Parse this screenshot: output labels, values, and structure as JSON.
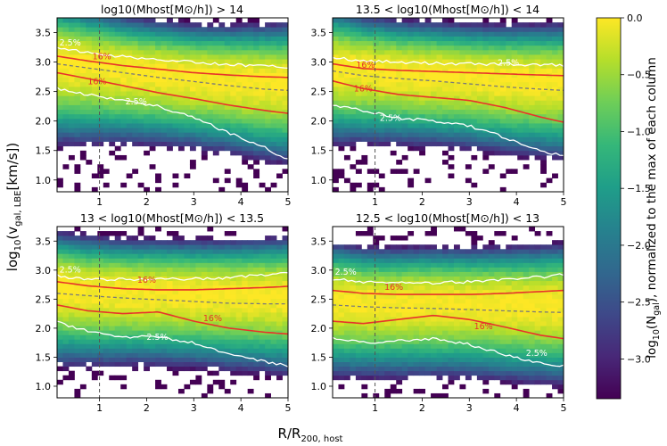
{
  "figure": {
    "xlabel": "R/R",
    "xlabel_sub": "200, host",
    "ylabel": "log",
    "ylabel_sub": "10",
    "ylabel_tail": "(v",
    "ylabel_sub2": "gal, LBE",
    "ylabel_end": "[km/s])"
  },
  "chart_data": [
    {
      "type": "heatmap",
      "title": "log10(Mhost[M⊙/h]) > 14",
      "x": [
        0.1,
        0.75,
        1.5,
        2.25,
        3.0,
        3.75,
        4.5,
        5.0
      ],
      "ridge": [
        3.02,
        2.95,
        2.88,
        2.82,
        2.76,
        2.72,
        2.68,
        2.67
      ],
      "width": [
        0.38,
        0.36,
        0.34,
        0.33,
        0.33,
        0.34,
        0.36,
        0.37
      ],
      "contours": [
        {
          "name": "2.5% upper",
          "color": "#ffffff",
          "dash": "",
          "values": [
            3.23,
            3.16,
            3.09,
            3.04,
            3.0,
            2.96,
            2.93,
            2.92
          ]
        },
        {
          "name": "16% upper",
          "color": "#e8322b",
          "dash": "",
          "values": [
            3.1,
            3.02,
            2.94,
            2.88,
            2.82,
            2.78,
            2.75,
            2.74
          ]
        },
        {
          "name": "median",
          "color": "#7a7a7a",
          "dash": "4,3",
          "values": [
            2.97,
            2.9,
            2.82,
            2.74,
            2.67,
            2.6,
            2.54,
            2.52
          ]
        },
        {
          "name": "16% lower",
          "color": "#e8322b",
          "dash": "",
          "values": [
            2.82,
            2.72,
            2.6,
            2.48,
            2.38,
            2.27,
            2.18,
            2.13
          ]
        },
        {
          "name": "2.5% lower",
          "color": "#ffffff",
          "dash": "",
          "values": [
            2.55,
            2.45,
            2.35,
            2.25,
            2.05,
            1.8,
            1.55,
            1.35
          ]
        }
      ],
      "labels": [
        {
          "text": "2.5%",
          "x": 0.15,
          "y": 3.28,
          "color": "#ffffff"
        },
        {
          "text": "16%",
          "x": 0.85,
          "y": 3.05,
          "color": "#e8322b"
        },
        {
          "text": "16%",
          "x": 0.75,
          "y": 2.62,
          "color": "#e8322b"
        },
        {
          "text": "2.5%",
          "x": 1.55,
          "y": 2.28,
          "color": "#ffffff"
        }
      ]
    },
    {
      "type": "heatmap",
      "title": "13.5 < log10(Mhost[M⊙/h]) < 14",
      "x": [
        0.1,
        0.75,
        1.5,
        2.25,
        3.0,
        3.75,
        4.5,
        5.0
      ],
      "ridge": [
        2.95,
        2.88,
        2.83,
        2.8,
        2.76,
        2.72,
        2.7,
        2.69
      ],
      "width": [
        0.36,
        0.34,
        0.33,
        0.33,
        0.33,
        0.34,
        0.35,
        0.36
      ],
      "contours": [
        {
          "name": "2.5% upper",
          "color": "#ffffff",
          "dash": "",
          "values": [
            3.08,
            3.02,
            3.0,
            2.98,
            2.97,
            2.96,
            2.95,
            2.95
          ]
        },
        {
          "name": "16% upper",
          "color": "#e8322b",
          "dash": "",
          "values": [
            2.97,
            2.89,
            2.86,
            2.84,
            2.82,
            2.8,
            2.78,
            2.77
          ]
        },
        {
          "name": "median",
          "color": "#7a7a7a",
          "dash": "4,3",
          "values": [
            2.85,
            2.77,
            2.72,
            2.68,
            2.63,
            2.58,
            2.54,
            2.52
          ]
        },
        {
          "name": "16% lower",
          "color": "#e8322b",
          "dash": "",
          "values": [
            2.68,
            2.55,
            2.45,
            2.4,
            2.35,
            2.23,
            2.07,
            1.98
          ]
        },
        {
          "name": "2.5% lower",
          "color": "#ffffff",
          "dash": "",
          "values": [
            2.28,
            2.18,
            2.05,
            2.0,
            1.92,
            1.72,
            1.5,
            1.4
          ]
        }
      ],
      "labels": [
        {
          "text": "16%",
          "x": 0.6,
          "y": 2.9,
          "color": "#e8322b"
        },
        {
          "text": "16%",
          "x": 0.55,
          "y": 2.5,
          "color": "#e8322b"
        },
        {
          "text": "2.5%",
          "x": 1.1,
          "y": 2.0,
          "color": "#ffffff"
        },
        {
          "text": "2.5%",
          "x": 3.6,
          "y": 2.94,
          "color": "#ffffff"
        }
      ]
    },
    {
      "type": "heatmap",
      "title": "13 < log10(Mhost[M⊙/h]) < 13.5",
      "x": [
        0.1,
        0.75,
        1.5,
        2.25,
        3.0,
        3.75,
        4.5,
        5.0
      ],
      "ridge": [
        2.7,
        2.65,
        2.63,
        2.62,
        2.6,
        2.58,
        2.58,
        2.58
      ],
      "width": [
        0.36,
        0.35,
        0.34,
        0.34,
        0.34,
        0.35,
        0.36,
        0.37
      ],
      "contours": [
        {
          "name": "2.5% upper",
          "color": "#ffffff",
          "dash": "",
          "values": [
            2.9,
            2.84,
            2.84,
            2.84,
            2.85,
            2.87,
            2.92,
            2.95
          ]
        },
        {
          "name": "16% upper",
          "color": "#e8322b",
          "dash": "",
          "values": [
            2.8,
            2.73,
            2.68,
            2.66,
            2.66,
            2.68,
            2.7,
            2.72
          ]
        },
        {
          "name": "median",
          "color": "#7a7a7a",
          "dash": "4,3",
          "values": [
            2.6,
            2.56,
            2.52,
            2.49,
            2.46,
            2.43,
            2.42,
            2.42
          ]
        },
        {
          "name": "16% lower",
          "color": "#e8322b",
          "dash": "",
          "values": [
            2.4,
            2.3,
            2.25,
            2.28,
            2.12,
            2.0,
            1.93,
            1.9
          ]
        },
        {
          "name": "2.5% lower",
          "color": "#ffffff",
          "dash": "",
          "values": [
            2.1,
            1.95,
            1.85,
            1.85,
            1.75,
            1.55,
            1.42,
            1.35
          ]
        }
      ],
      "labels": [
        {
          "text": "2.5%",
          "x": 0.15,
          "y": 2.96,
          "color": "#ffffff"
        },
        {
          "text": "16%",
          "x": 1.8,
          "y": 2.78,
          "color": "#e8322b"
        },
        {
          "text": "16%",
          "x": 3.2,
          "y": 2.12,
          "color": "#e8322b"
        },
        {
          "text": "2.5%",
          "x": 2.0,
          "y": 1.8,
          "color": "#ffffff"
        }
      ]
    },
    {
      "type": "heatmap",
      "title": "12.5 < log10(Mhost[M⊙/h]) < 13",
      "x": [
        0.1,
        0.75,
        1.5,
        2.25,
        3.0,
        3.75,
        4.5,
        5.0
      ],
      "ridge": [
        2.5,
        2.46,
        2.45,
        2.46,
        2.45,
        2.44,
        2.43,
        2.43
      ],
      "width": [
        0.36,
        0.35,
        0.35,
        0.35,
        0.35,
        0.36,
        0.37,
        0.38
      ],
      "contours": [
        {
          "name": "2.5% upper",
          "color": "#ffffff",
          "dash": "",
          "values": [
            2.85,
            2.8,
            2.78,
            2.78,
            2.8,
            2.83,
            2.88,
            2.92
          ]
        },
        {
          "name": "16% upper",
          "color": "#e8322b",
          "dash": "",
          "values": [
            2.65,
            2.6,
            2.58,
            2.58,
            2.58,
            2.6,
            2.63,
            2.65
          ]
        },
        {
          "name": "median",
          "color": "#7a7a7a",
          "dash": "4,3",
          "values": [
            2.4,
            2.37,
            2.35,
            2.34,
            2.32,
            2.3,
            2.28,
            2.27
          ]
        },
        {
          "name": "16% lower",
          "color": "#e8322b",
          "dash": "",
          "values": [
            2.12,
            2.08,
            2.15,
            2.22,
            2.15,
            2.02,
            1.88,
            1.82
          ]
        },
        {
          "name": "2.5% lower",
          "color": "#ffffff",
          "dash": "",
          "values": [
            1.82,
            1.75,
            1.78,
            1.82,
            1.72,
            1.55,
            1.4,
            1.35
          ]
        }
      ],
      "labels": [
        {
          "text": "2.5%",
          "x": 0.15,
          "y": 2.92,
          "color": "#ffffff"
        },
        {
          "text": "16%",
          "x": 1.2,
          "y": 2.66,
          "color": "#e8322b"
        },
        {
          "text": "16%",
          "x": 3.1,
          "y": 1.98,
          "color": "#e8322b"
        },
        {
          "text": "2.5%",
          "x": 4.2,
          "y": 1.52,
          "color": "#ffffff"
        }
      ]
    }
  ],
  "axes": {
    "xlim": [
      0.1,
      5.0
    ],
    "ylim": [
      0.8,
      3.75
    ],
    "xticks": [
      1,
      2,
      3,
      4,
      5
    ],
    "yticks": [
      1.0,
      1.5,
      2.0,
      2.5,
      3.0,
      3.5
    ],
    "xtick_labels": [
      "1",
      "2",
      "3",
      "4",
      "5"
    ],
    "ytick_labels": [
      "1.0",
      "1.5",
      "2.0",
      "2.5",
      "3.0",
      "3.5"
    ],
    "vline_x": 1.0
  },
  "colorbar": {
    "label": "log",
    "label_sub": "10",
    "label_mid": "(N",
    "label_sub2": "gal",
    "label_end": "), normalized to the max of each column",
    "ticks": [
      0.0,
      -0.5,
      -1.0,
      -1.5,
      -2.0,
      -2.5,
      -3.0
    ],
    "tick_labels": [
      "0.0",
      "−0.5",
      "−1.0",
      "−1.5",
      "−2.0",
      "−2.5",
      "−3.0"
    ],
    "range": [
      -3.35,
      0.0
    ]
  },
  "colors": {
    "viridis": [
      "#440154",
      "#482878",
      "#3e4989",
      "#31688e",
      "#26828e",
      "#1f9e89",
      "#35b779",
      "#6ece58",
      "#b5de2b",
      "#fde725"
    ]
  }
}
